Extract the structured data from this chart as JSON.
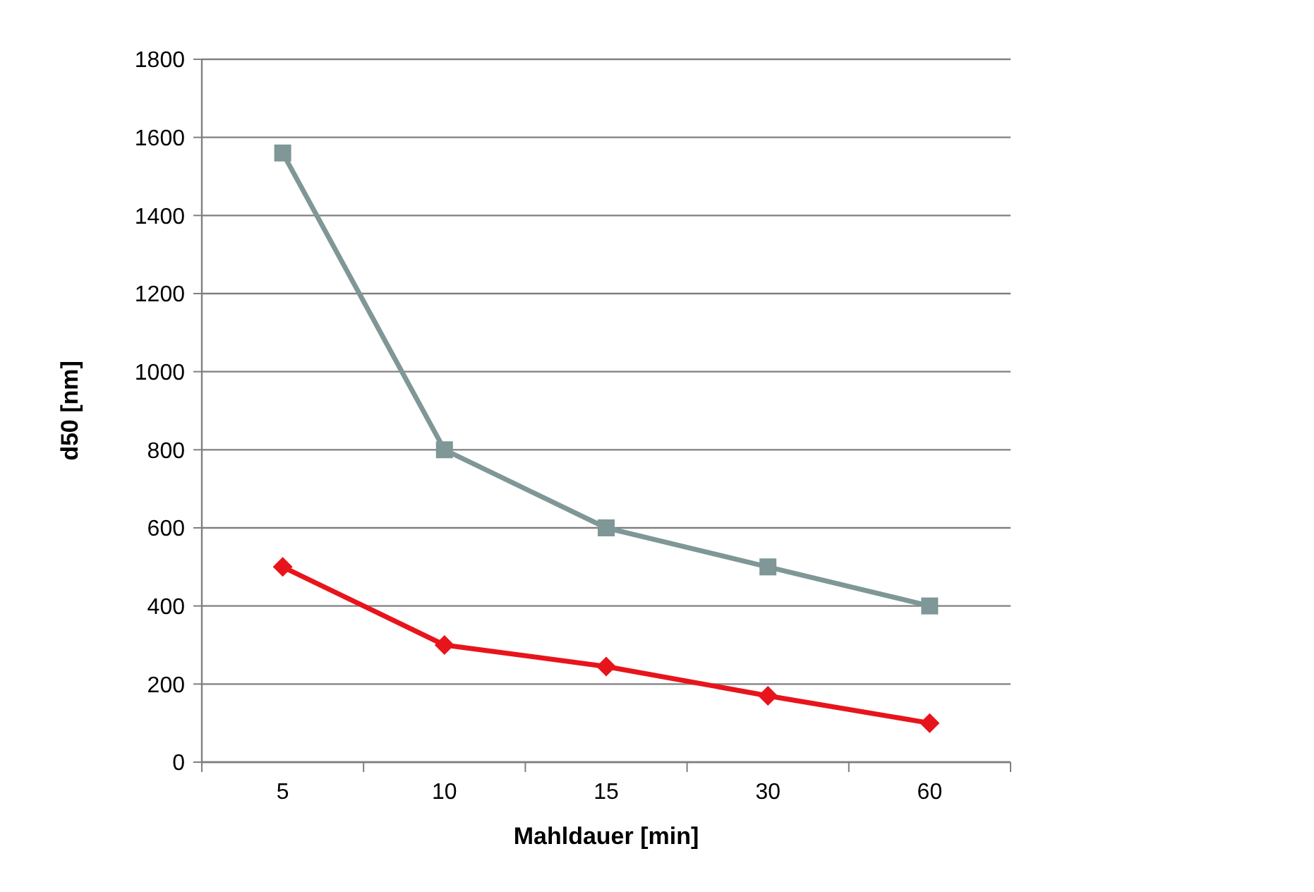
{
  "chart_data": {
    "type": "line",
    "xlabel": "Mahldauer [min]",
    "ylabel": "d50 [nm]",
    "categories": [
      "5",
      "10",
      "15",
      "30",
      "60"
    ],
    "ylim": [
      0,
      1800
    ],
    "yticks": [
      0,
      200,
      400,
      600,
      800,
      1000,
      1200,
      1400,
      1600,
      1800
    ],
    "grid": "y",
    "line_style": "solid",
    "series": [
      {
        "color": "#e8141c",
        "marker": "diamond",
        "values": [
          500,
          300,
          245,
          170,
          100
        ]
      },
      {
        "color": "#7f9796",
        "marker": "square",
        "values": [
          1560,
          800,
          600,
          500,
          400
        ]
      }
    ]
  }
}
